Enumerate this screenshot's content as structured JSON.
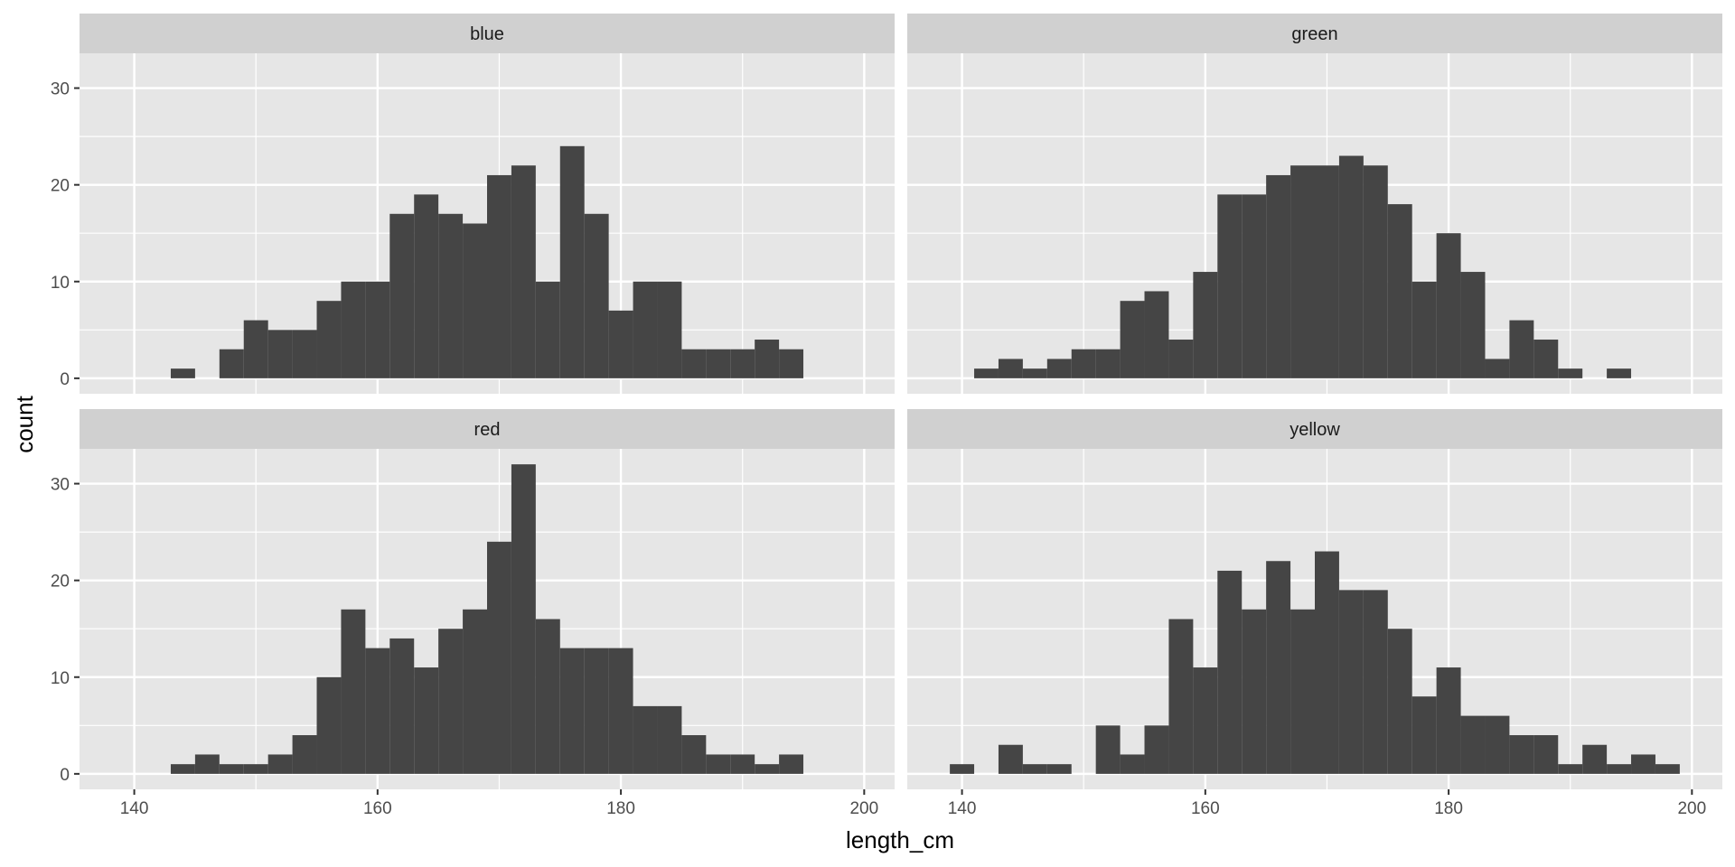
{
  "chart_data": {
    "type": "bar",
    "subtype": "faceted-histogram",
    "xlabel": "length_cm",
    "ylabel": "count",
    "xlim": [
      135.5,
      202.5
    ],
    "ylim": [
      -1.6,
      33.6
    ],
    "x_ticks": [
      140,
      160,
      180,
      200
    ],
    "y_ticks": [
      0,
      10,
      20,
      30
    ],
    "bin_width": 2,
    "colors": {
      "bar": "#454545",
      "panel": "#e6e6e6",
      "strip": "#d0d0d0",
      "grid": "#ffffff"
    },
    "facets": [
      {
        "name": "blue",
        "bins": [
          {
            "x": 144,
            "count": 1
          },
          {
            "x": 148,
            "count": 3
          },
          {
            "x": 150,
            "count": 6
          },
          {
            "x": 152,
            "count": 5
          },
          {
            "x": 154,
            "count": 5
          },
          {
            "x": 156,
            "count": 8
          },
          {
            "x": 158,
            "count": 10
          },
          {
            "x": 160,
            "count": 10
          },
          {
            "x": 162,
            "count": 17
          },
          {
            "x": 164,
            "count": 19
          },
          {
            "x": 166,
            "count": 17
          },
          {
            "x": 168,
            "count": 16
          },
          {
            "x": 170,
            "count": 21
          },
          {
            "x": 172,
            "count": 22
          },
          {
            "x": 174,
            "count": 10
          },
          {
            "x": 176,
            "count": 24
          },
          {
            "x": 178,
            "count": 17
          },
          {
            "x": 180,
            "count": 7
          },
          {
            "x": 182,
            "count": 10
          },
          {
            "x": 184,
            "count": 10
          },
          {
            "x": 186,
            "count": 3
          },
          {
            "x": 188,
            "count": 3
          },
          {
            "x": 190,
            "count": 3
          },
          {
            "x": 192,
            "count": 4
          },
          {
            "x": 194,
            "count": 3
          }
        ]
      },
      {
        "name": "green",
        "bins": [
          {
            "x": 142,
            "count": 1
          },
          {
            "x": 144,
            "count": 2
          },
          {
            "x": 146,
            "count": 1
          },
          {
            "x": 148,
            "count": 2
          },
          {
            "x": 150,
            "count": 3
          },
          {
            "x": 152,
            "count": 3
          },
          {
            "x": 154,
            "count": 8
          },
          {
            "x": 156,
            "count": 9
          },
          {
            "x": 158,
            "count": 4
          },
          {
            "x": 160,
            "count": 11
          },
          {
            "x": 162,
            "count": 19
          },
          {
            "x": 164,
            "count": 19
          },
          {
            "x": 166,
            "count": 21
          },
          {
            "x": 168,
            "count": 22
          },
          {
            "x": 170,
            "count": 22
          },
          {
            "x": 172,
            "count": 23
          },
          {
            "x": 174,
            "count": 22
          },
          {
            "x": 176,
            "count": 18
          },
          {
            "x": 178,
            "count": 10
          },
          {
            "x": 180,
            "count": 15
          },
          {
            "x": 182,
            "count": 11
          },
          {
            "x": 184,
            "count": 2
          },
          {
            "x": 186,
            "count": 6
          },
          {
            "x": 188,
            "count": 4
          },
          {
            "x": 190,
            "count": 1
          },
          {
            "x": 194,
            "count": 1
          }
        ]
      },
      {
        "name": "red",
        "bins": [
          {
            "x": 144,
            "count": 1
          },
          {
            "x": 146,
            "count": 2
          },
          {
            "x": 148,
            "count": 1
          },
          {
            "x": 150,
            "count": 1
          },
          {
            "x": 152,
            "count": 2
          },
          {
            "x": 154,
            "count": 4
          },
          {
            "x": 156,
            "count": 10
          },
          {
            "x": 158,
            "count": 17
          },
          {
            "x": 160,
            "count": 13
          },
          {
            "x": 162,
            "count": 14
          },
          {
            "x": 164,
            "count": 11
          },
          {
            "x": 166,
            "count": 15
          },
          {
            "x": 168,
            "count": 17
          },
          {
            "x": 170,
            "count": 24
          },
          {
            "x": 172,
            "count": 32
          },
          {
            "x": 174,
            "count": 16
          },
          {
            "x": 176,
            "count": 13
          },
          {
            "x": 178,
            "count": 13
          },
          {
            "x": 180,
            "count": 13
          },
          {
            "x": 182,
            "count": 7
          },
          {
            "x": 184,
            "count": 7
          },
          {
            "x": 186,
            "count": 4
          },
          {
            "x": 188,
            "count": 2
          },
          {
            "x": 190,
            "count": 2
          },
          {
            "x": 192,
            "count": 1
          },
          {
            "x": 194,
            "count": 2
          }
        ]
      },
      {
        "name": "yellow",
        "bins": [
          {
            "x": 140,
            "count": 1
          },
          {
            "x": 144,
            "count": 3
          },
          {
            "x": 146,
            "count": 1
          },
          {
            "x": 148,
            "count": 1
          },
          {
            "x": 152,
            "count": 5
          },
          {
            "x": 154,
            "count": 2
          },
          {
            "x": 156,
            "count": 5
          },
          {
            "x": 158,
            "count": 16
          },
          {
            "x": 160,
            "count": 11
          },
          {
            "x": 162,
            "count": 21
          },
          {
            "x": 164,
            "count": 17
          },
          {
            "x": 166,
            "count": 22
          },
          {
            "x": 168,
            "count": 17
          },
          {
            "x": 170,
            "count": 23
          },
          {
            "x": 172,
            "count": 19
          },
          {
            "x": 174,
            "count": 19
          },
          {
            "x": 176,
            "count": 15
          },
          {
            "x": 178,
            "count": 8
          },
          {
            "x": 180,
            "count": 11
          },
          {
            "x": 182,
            "count": 6
          },
          {
            "x": 184,
            "count": 6
          },
          {
            "x": 186,
            "count": 4
          },
          {
            "x": 188,
            "count": 4
          },
          {
            "x": 190,
            "count": 1
          },
          {
            "x": 192,
            "count": 3
          },
          {
            "x": 194,
            "count": 1
          },
          {
            "x": 196,
            "count": 2
          },
          {
            "x": 198,
            "count": 1
          }
        ]
      }
    ]
  }
}
